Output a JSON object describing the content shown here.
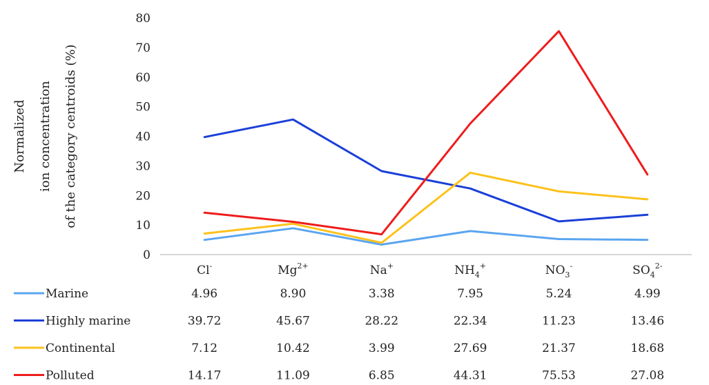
{
  "chart_data": {
    "type": "line",
    "title": "",
    "ylabel_lines": [
      "Normalized",
      "ion concentration",
      "of the category centroids  (%)"
    ],
    "xlabel": "",
    "ylim": [
      0,
      80
    ],
    "yticks": [
      0,
      10,
      20,
      30,
      40,
      50,
      60,
      70,
      80
    ],
    "grid": false,
    "legend": "data-table-below",
    "categories": [
      {
        "base": "Cl",
        "sub": "",
        "sup": "-"
      },
      {
        "base": "Mg",
        "sub": "",
        "sup": "2+"
      },
      {
        "base": "Na",
        "sub": "",
        "sup": "+"
      },
      {
        "base": "NH",
        "sub": "4",
        "sup": "+"
      },
      {
        "base": "NO",
        "sub": "3",
        "sup": "-"
      },
      {
        "base": "SO",
        "sub": "4",
        "sup": "2-"
      }
    ],
    "series": [
      {
        "name": "Marine",
        "color": "#5aa5f0",
        "values": [
          4.96,
          8.9,
          3.38,
          7.95,
          5.24,
          4.99
        ],
        "labels": [
          "4.96",
          "8.90",
          "3.38",
          "7.95",
          "5.24",
          "4.99"
        ]
      },
      {
        "name": "Highly marine",
        "color": "#1a3fd8",
        "values": [
          39.72,
          45.67,
          28.22,
          22.34,
          11.23,
          13.46
        ],
        "labels": [
          "39.72",
          "45.67",
          "28.22",
          "22.34",
          "11.23",
          "13.46"
        ]
      },
      {
        "name": "Continental",
        "color": "#fcc21b",
        "values": [
          7.12,
          10.42,
          3.99,
          27.69,
          21.37,
          18.68
        ],
        "labels": [
          "7.12",
          "10.42",
          "3.99",
          "27.69",
          "21.37",
          "18.68"
        ]
      },
      {
        "name": "Polluted",
        "color": "#ee1c1c",
        "values": [
          14.17,
          11.09,
          6.85,
          44.31,
          75.53,
          27.08
        ],
        "labels": [
          "14.17",
          "11.09",
          "6.85",
          "44.31",
          "75.53",
          "27.08"
        ]
      }
    ]
  }
}
